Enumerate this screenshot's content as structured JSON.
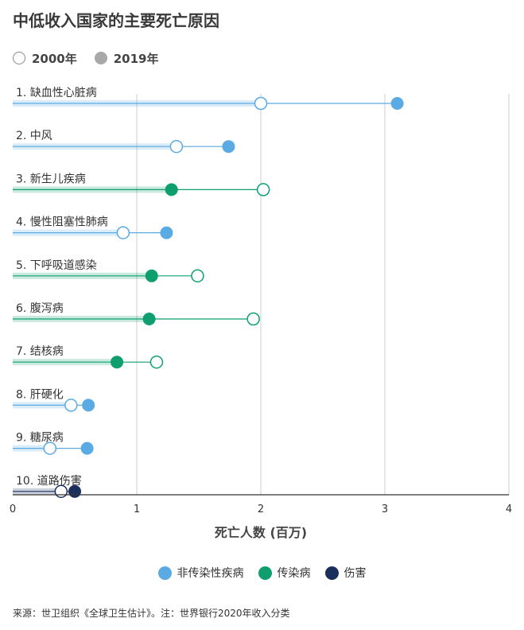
{
  "header": {
    "title": "中低收入国家的主要死亡原因"
  },
  "year_legend": [
    {
      "label": "2000年",
      "style": "open"
    },
    {
      "label": "2019年",
      "style": "filled"
    }
  ],
  "colors": {
    "noncommunicable": "#5aaae3",
    "communicable": "#0f9f6e",
    "injury": "#1b2f5c",
    "gridline": "#cccccc",
    "axis": "#333333"
  },
  "category_legend": [
    {
      "label": "非传染性疾病",
      "color": "#5aaae3"
    },
    {
      "label": "传染病",
      "color": "#0f9f6e"
    },
    {
      "label": "伤害",
      "color": "#1b2f5c"
    }
  ],
  "chart_data": {
    "type": "dumbbell",
    "xlabel": "死亡人数 (百万)",
    "xlim": [
      0,
      4
    ],
    "xticks": [
      0,
      1,
      2,
      3,
      4
    ],
    "grid": true,
    "categories": [
      {
        "label": "1. 缺血性心脏病",
        "group": "noncommunicable",
        "y2000": 2.0,
        "y2019": 3.1
      },
      {
        "label": "2. 中风",
        "group": "noncommunicable",
        "y2000": 1.32,
        "y2019": 1.74
      },
      {
        "label": "3. 新生儿疾病",
        "group": "communicable",
        "y2000": 2.02,
        "y2019": 1.28
      },
      {
        "label": "4. 慢性阻塞性肺病",
        "group": "noncommunicable",
        "y2000": 0.89,
        "y2019": 1.24
      },
      {
        "label": "5. 下呼吸道感染",
        "group": "communicable",
        "y2000": 1.49,
        "y2019": 1.12
      },
      {
        "label": "6. 腹泻病",
        "group": "communicable",
        "y2000": 1.94,
        "y2019": 1.1
      },
      {
        "label": "7. 结核病",
        "group": "communicable",
        "y2000": 1.16,
        "y2019": 0.84
      },
      {
        "label": "8. 肝硬化",
        "group": "noncommunicable",
        "y2000": 0.47,
        "y2019": 0.61
      },
      {
        "label": "9. 糖尿病",
        "group": "noncommunicable",
        "y2000": 0.3,
        "y2019": 0.6
      },
      {
        "label": "10. 道路伤害",
        "group": "injury",
        "y2000": 0.39,
        "y2019": 0.5
      }
    ]
  },
  "footer": {
    "source": "来源：世卫组织《全球卫生估计》。注：世界银行2020年收入分类"
  }
}
